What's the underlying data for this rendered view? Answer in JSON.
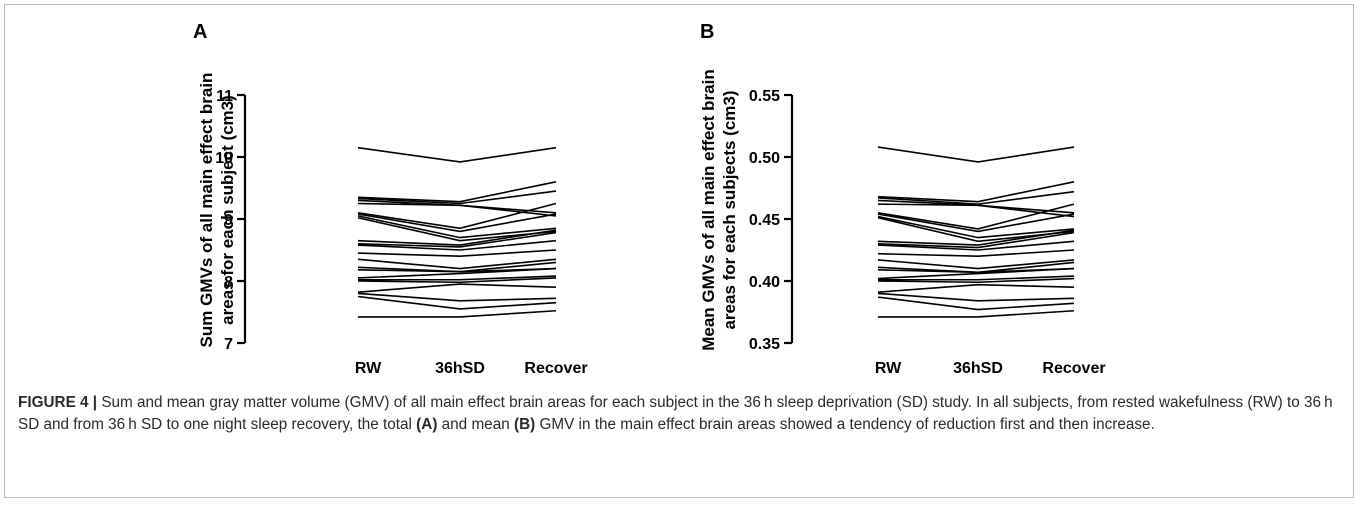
{
  "caption": {
    "label": "FIGURE 4 |",
    "text1": " Sum and mean gray matter volume (GMV) of all main effect brain areas for each subject in the 36 h sleep deprivation (SD) study. In all subjects, from rested wakefulness (RW) to 36 h SD and from 36 h SD to one night sleep recovery, the total ",
    "ref_a": "(A)",
    "text2": " and mean ",
    "ref_b": "(B)",
    "text3": " GMV in the main effect brain areas showed a tendency of reduction first and then increase."
  },
  "chart_data": [
    {
      "type": "line",
      "panel": "A",
      "ylabel_line1": "Sum GMVs of all main effect brain",
      "ylabel_line2": "areas for each subject (cm3)",
      "categories": [
        "RW",
        "36hSD",
        "Recover"
      ],
      "ylim": [
        7,
        11
      ],
      "yticks": [
        "7",
        "8",
        "9",
        "10",
        "11"
      ],
      "series": [
        {
          "values": [
            10.15,
            9.92,
            10.15
          ]
        },
        {
          "values": [
            9.35,
            9.28,
            9.6
          ]
        },
        {
          "values": [
            9.33,
            9.25,
            9.45
          ]
        },
        {
          "values": [
            9.3,
            9.22,
            9.1
          ]
        },
        {
          "values": [
            9.25,
            9.22,
            9.05
          ]
        },
        {
          "values": [
            9.1,
            8.85,
            9.25
          ]
        },
        {
          "values": [
            9.08,
            8.8,
            9.08
          ]
        },
        {
          "values": [
            9.05,
            8.7,
            8.85
          ]
        },
        {
          "values": [
            9.02,
            8.65,
            8.8
          ]
        },
        {
          "values": [
            8.65,
            8.58,
            8.82
          ]
        },
        {
          "values": [
            8.6,
            8.55,
            8.78
          ]
        },
        {
          "values": [
            8.58,
            8.5,
            8.65
          ]
        },
        {
          "values": [
            8.45,
            8.4,
            8.5
          ]
        },
        {
          "values": [
            8.35,
            8.2,
            8.35
          ]
        },
        {
          "values": [
            8.22,
            8.15,
            8.3
          ]
        },
        {
          "values": [
            8.18,
            8.15,
            8.2
          ]
        },
        {
          "values": [
            8.05,
            8.12,
            8.2
          ]
        },
        {
          "values": [
            8.02,
            8.02,
            8.08
          ]
        },
        {
          "values": [
            8.0,
            7.98,
            8.05
          ]
        },
        {
          "values": [
            7.82,
            7.95,
            7.9
          ]
        },
        {
          "values": [
            7.8,
            7.68,
            7.72
          ]
        },
        {
          "values": [
            7.75,
            7.55,
            7.65
          ]
        },
        {
          "values": [
            7.42,
            7.42,
            7.52
          ]
        }
      ]
    },
    {
      "type": "line",
      "panel": "B",
      "ylabel_line1": "Mean GMVs of all main effect brain",
      "ylabel_line2": "areas for each subjects (cm3)",
      "categories": [
        "RW",
        "36hSD",
        "Recover"
      ],
      "ylim": [
        0.35,
        0.55
      ],
      "yticks": [
        "0.35",
        "0.40",
        "0.45",
        "0.50",
        "0.55"
      ],
      "series": [
        {
          "values": [
            0.508,
            0.496,
            0.508
          ]
        },
        {
          "values": [
            0.468,
            0.464,
            0.48
          ]
        },
        {
          "values": [
            0.467,
            0.462,
            0.472
          ]
        },
        {
          "values": [
            0.465,
            0.461,
            0.455
          ]
        },
        {
          "values": [
            0.462,
            0.461,
            0.452
          ]
        },
        {
          "values": [
            0.455,
            0.442,
            0.462
          ]
        },
        {
          "values": [
            0.454,
            0.44,
            0.454
          ]
        },
        {
          "values": [
            0.452,
            0.435,
            0.442
          ]
        },
        {
          "values": [
            0.451,
            0.432,
            0.44
          ]
        },
        {
          "values": [
            0.432,
            0.429,
            0.441
          ]
        },
        {
          "values": [
            0.43,
            0.427,
            0.439
          ]
        },
        {
          "values": [
            0.429,
            0.425,
            0.432
          ]
        },
        {
          "values": [
            0.422,
            0.42,
            0.425
          ]
        },
        {
          "values": [
            0.417,
            0.41,
            0.417
          ]
        },
        {
          "values": [
            0.411,
            0.407,
            0.415
          ]
        },
        {
          "values": [
            0.409,
            0.407,
            0.41
          ]
        },
        {
          "values": [
            0.402,
            0.406,
            0.41
          ]
        },
        {
          "values": [
            0.401,
            0.401,
            0.404
          ]
        },
        {
          "values": [
            0.4,
            0.399,
            0.402
          ]
        },
        {
          "values": [
            0.391,
            0.397,
            0.395
          ]
        },
        {
          "values": [
            0.39,
            0.384,
            0.386
          ]
        },
        {
          "values": [
            0.387,
            0.377,
            0.382
          ]
        },
        {
          "values": [
            0.371,
            0.371,
            0.376
          ]
        }
      ]
    }
  ]
}
